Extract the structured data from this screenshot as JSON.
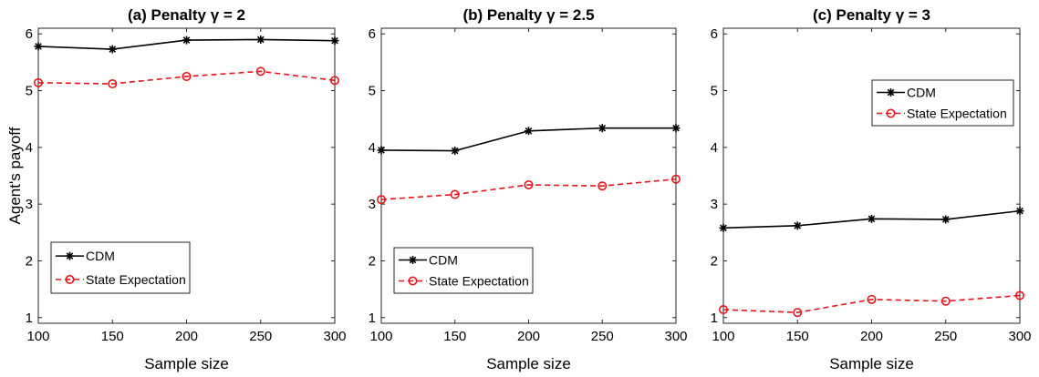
{
  "chart_data": [
    {
      "type": "line",
      "title": "(a) Penalty γ = 2",
      "xlabel": "Sample size",
      "ylabel": "Agent's payoff",
      "x": [
        100,
        150,
        200,
        250,
        300
      ],
      "xticks": [
        "100",
        "150",
        "200",
        "250",
        "300"
      ],
      "yticks": [
        "1",
        "2",
        "3",
        "4",
        "5",
        "6"
      ],
      "xlim": [
        100,
        300
      ],
      "ylim": [
        0.9,
        6.1
      ],
      "legend": "bottom-left",
      "series": [
        {
          "name": "CDM",
          "values": [
            5.78,
            5.73,
            5.89,
            5.9,
            5.88
          ],
          "color": "#000000",
          "marker": "star",
          "dash": "solid"
        },
        {
          "name": "State Expectation",
          "values": [
            5.14,
            5.12,
            5.25,
            5.34,
            5.18
          ],
          "color": "#e8141b",
          "marker": "circle",
          "dash": "dashed"
        }
      ]
    },
    {
      "type": "line",
      "title": "(b) Penalty γ = 2.5",
      "xlabel": "Sample size",
      "ylabel": "",
      "x": [
        100,
        150,
        200,
        250,
        300
      ],
      "xticks": [
        "100",
        "150",
        "200",
        "250",
        "300"
      ],
      "yticks": [
        "1",
        "2",
        "3",
        "4",
        "5",
        "6"
      ],
      "xlim": [
        100,
        300
      ],
      "ylim": [
        0.9,
        6.1
      ],
      "legend": "bottom-left",
      "series": [
        {
          "name": "CDM",
          "values": [
            3.95,
            3.94,
            4.29,
            4.34,
            4.34
          ],
          "color": "#000000",
          "marker": "star",
          "dash": "solid"
        },
        {
          "name": "State Expectation",
          "values": [
            3.08,
            3.17,
            3.34,
            3.32,
            3.44
          ],
          "color": "#e8141b",
          "marker": "circle",
          "dash": "dashed"
        }
      ]
    },
    {
      "type": "line",
      "title": "(c) Penalty γ = 3",
      "xlabel": "Sample size",
      "ylabel": "",
      "x": [
        100,
        150,
        200,
        250,
        300
      ],
      "xticks": [
        "100",
        "150",
        "200",
        "250",
        "300"
      ],
      "yticks": [
        "1",
        "2",
        "3",
        "4",
        "5",
        "6"
      ],
      "xlim": [
        100,
        300
      ],
      "ylim": [
        0.9,
        6.1
      ],
      "legend": "top-right",
      "series": [
        {
          "name": "CDM",
          "values": [
            2.58,
            2.62,
            2.74,
            2.73,
            2.88
          ],
          "color": "#000000",
          "marker": "star",
          "dash": "solid"
        },
        {
          "name": "State Expectation",
          "values": [
            1.14,
            1.09,
            1.32,
            1.29,
            1.39
          ],
          "color": "#e8141b",
          "marker": "circle",
          "dash": "dashed"
        }
      ]
    }
  ]
}
